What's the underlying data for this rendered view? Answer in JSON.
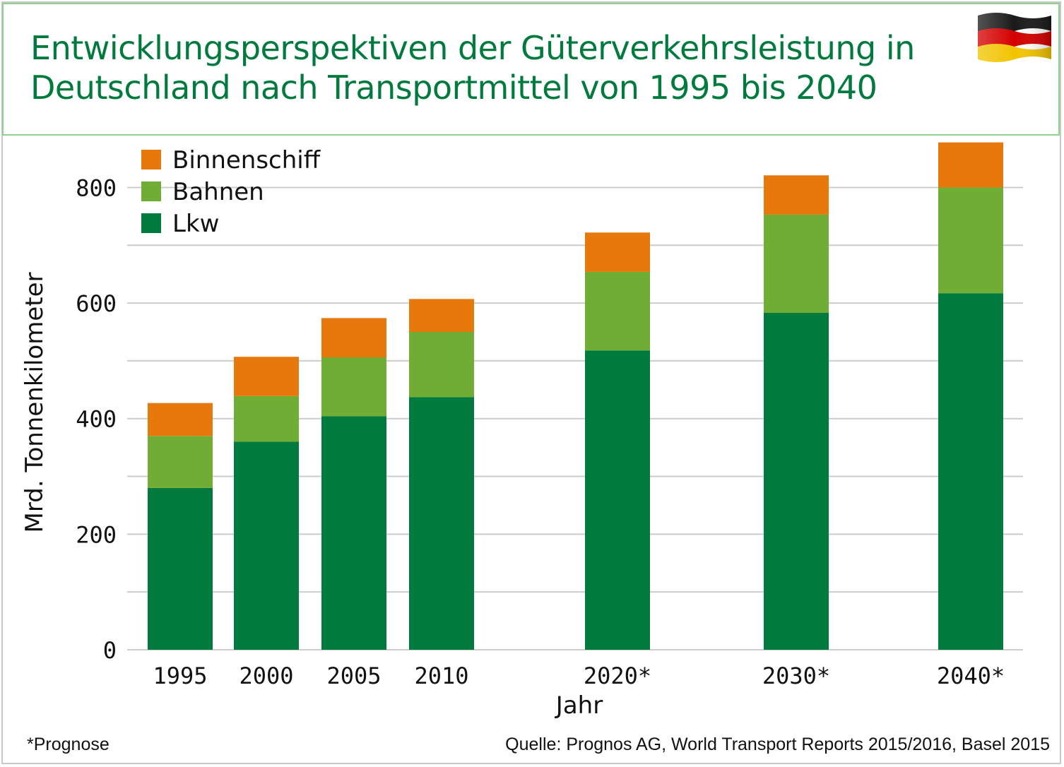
{
  "title": "Entwicklungsperspektiven der Güterverkehrsleistung in\nDeutschland nach Transportmittel von 1995 bis 2040",
  "footnote": "*Prognose",
  "source": "Quelle: Prognos AG, World Transport Reports 2015/2016, Basel 2015",
  "flag_icon": "germany-flag-icon",
  "colors": {
    "title": "#007a3d",
    "Lkw": "#007a3d",
    "Bahnen": "#70ad35",
    "Binnenschiff": "#e6780c",
    "grid": "#cccccc"
  },
  "chart_data": {
    "type": "bar",
    "stacked": true,
    "xlabel": "Jahr",
    "ylabel": "Mrd. Tonnenkilometer",
    "ylim": [
      0,
      880
    ],
    "yticks": [
      0,
      200,
      400,
      600,
      800
    ],
    "grid": true,
    "legend_position": "top-left",
    "categories": [
      "1995",
      "2000",
      "2005",
      "2010",
      "2020*",
      "2030*",
      "2040*"
    ],
    "series": [
      {
        "name": "Lkw",
        "values": [
          280,
          360,
          404,
          437,
          518,
          583,
          617
        ]
      },
      {
        "name": "Bahnen",
        "values": [
          90,
          79,
          102,
          113,
          136,
          170,
          183
        ]
      },
      {
        "name": "Binnenschiff",
        "values": [
          57,
          68,
          68,
          57,
          68,
          68,
          78
        ]
      }
    ],
    "legend_order": [
      "Binnenschiff",
      "Bahnen",
      "Lkw"
    ]
  }
}
